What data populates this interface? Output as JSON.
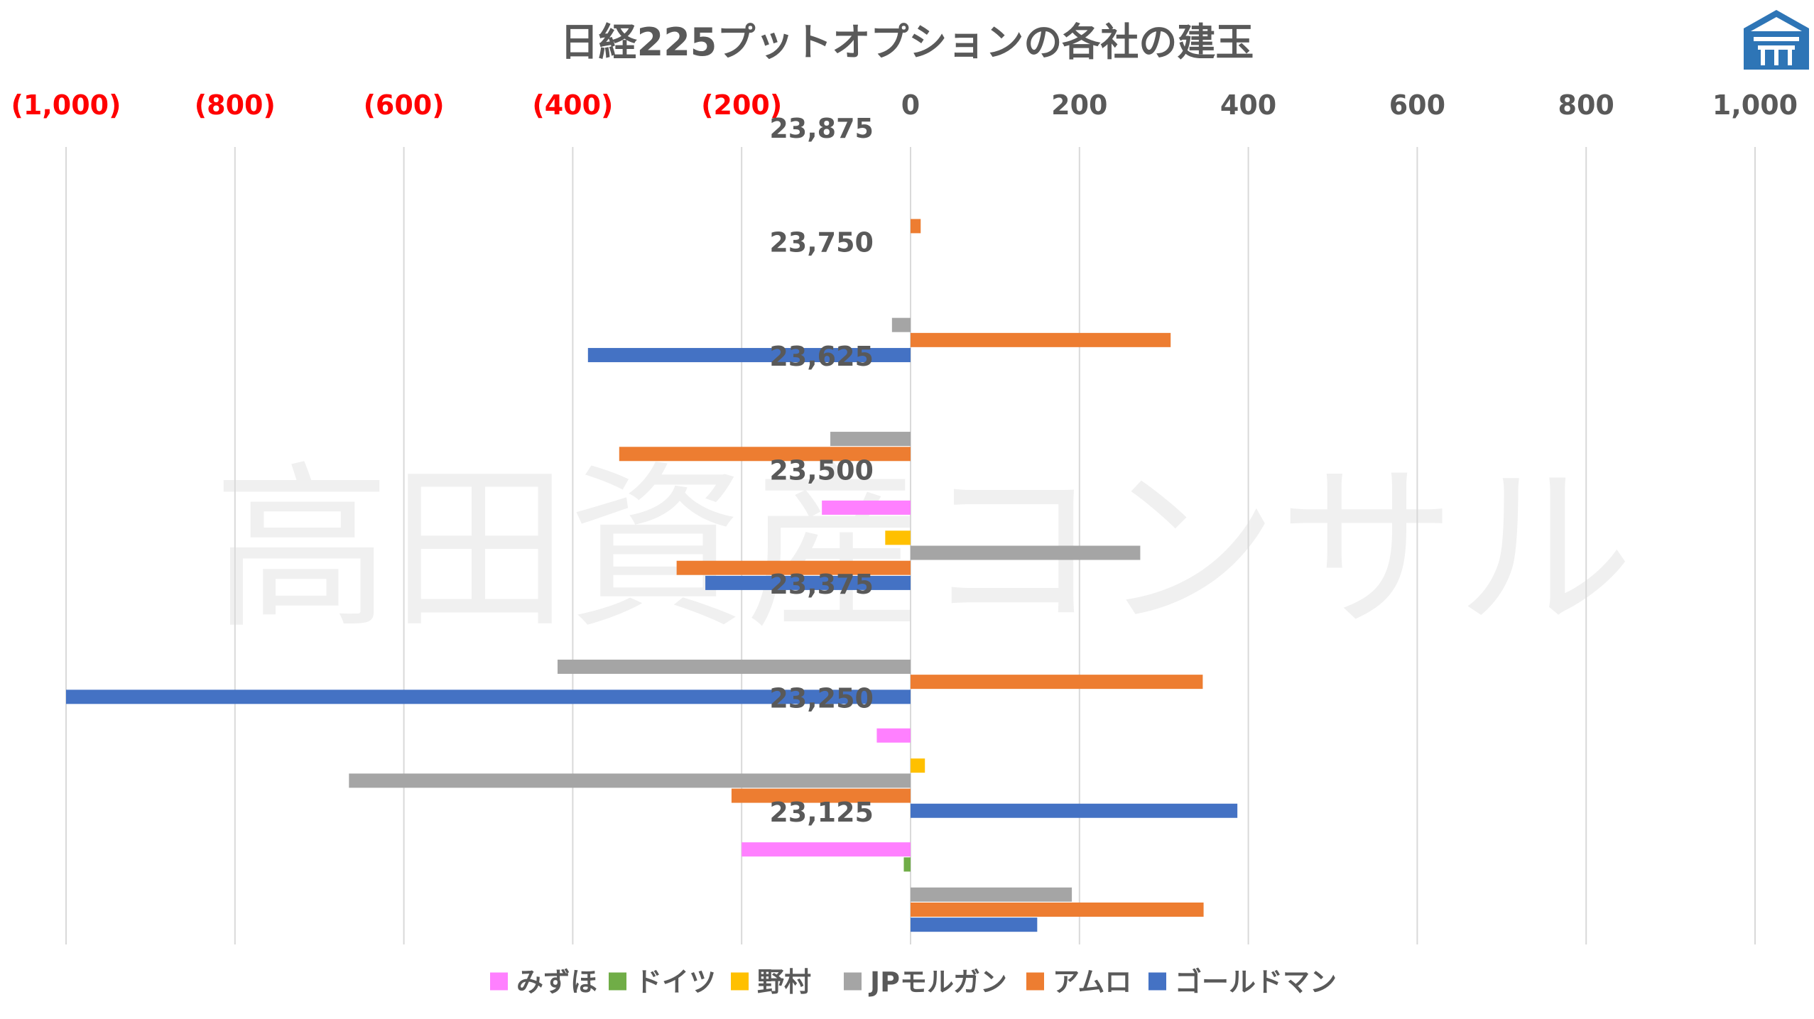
{
  "chart_data": {
    "type": "bar",
    "orientation": "horizontal",
    "title": "日経225プットオプションの各社の建玉",
    "xlim": [
      -1000,
      1000
    ],
    "x_ticks": [
      {
        "value": -1000,
        "label": "(1,000)"
      },
      {
        "value": -800,
        "label": "(800)"
      },
      {
        "value": -600,
        "label": "(600)"
      },
      {
        "value": -400,
        "label": "(400)"
      },
      {
        "value": -200,
        "label": "(200)"
      },
      {
        "value": 0,
        "label": "0"
      },
      {
        "value": 200,
        "label": "200"
      },
      {
        "value": 400,
        "label": "400"
      },
      {
        "value": 600,
        "label": "600"
      },
      {
        "value": 800,
        "label": "800"
      },
      {
        "value": 1000,
        "label": "1,000"
      }
    ],
    "negative_tick_color": "#FF0000",
    "positive_tick_color": "#595959",
    "categories": [
      "23,875",
      "23,750",
      "23,625",
      "23,500",
      "23,375",
      "23,250",
      "23,125"
    ],
    "series": [
      {
        "name": "みずほ",
        "color": "#FF80FF",
        "values": [
          0,
          0,
          0,
          -105,
          0,
          -40,
          -200
        ]
      },
      {
        "name": "ドイツ",
        "color": "#70AD47",
        "values": [
          0,
          0,
          0,
          0,
          0,
          0,
          -8
        ]
      },
      {
        "name": "野村",
        "color": "#FFC000",
        "values": [
          0,
          0,
          0,
          -30,
          0,
          17,
          0
        ]
      },
      {
        "name": "JPモルガン",
        "color": "#A5A5A5",
        "values": [
          0,
          -22,
          -95,
          272,
          -418,
          -665,
          191
        ]
      },
      {
        "name": "アムロ",
        "color": "#ED7D31",
        "values": [
          12,
          308,
          -345,
          -277,
          346,
          -212,
          347
        ]
      },
      {
        "name": "ゴールドマン",
        "color": "#4472C4",
        "values": [
          0,
          -382,
          0,
          -243,
          -1000,
          387,
          150
        ]
      }
    ],
    "grid": true,
    "legend_position": "bottom"
  },
  "watermark_text": "高田資産コンサル",
  "logo_icon": "takada-logo-icon"
}
